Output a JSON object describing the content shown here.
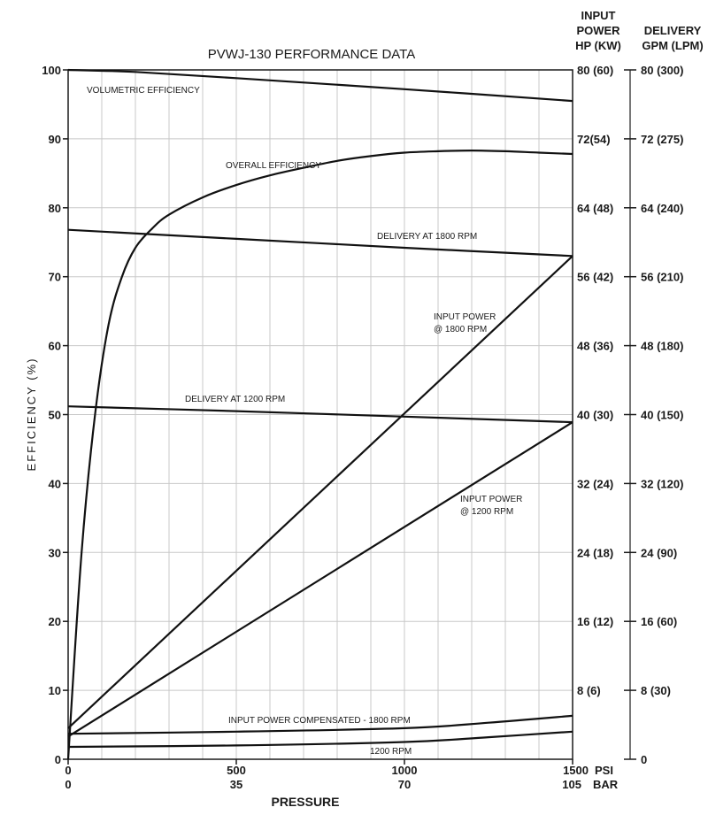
{
  "chart_data": {
    "type": "line",
    "title": "PVWJ-130 PERFORMANCE DATA",
    "xlabel": "PRESSURE",
    "ylabel": "EFFICIENCY (%)",
    "xlim": [
      0,
      1500
    ],
    "ylim": [
      0,
      100
    ],
    "x_unit_psi": "PSI",
    "x_unit_bar": "BAR",
    "x_ticks_psi": [
      "0",
      "500",
      "1000",
      "1500"
    ],
    "x_ticks_bar": [
      "0",
      "35",
      "70",
      "105"
    ],
    "y_ticks": [
      "0",
      "10",
      "20",
      "30",
      "40",
      "50",
      "60",
      "70",
      "80",
      "90",
      "100"
    ],
    "right_axis_1": {
      "title_lines": [
        "INPUT",
        "POWER",
        "HP (KW)"
      ],
      "ticks": [
        "8 (6)",
        "16 (12)",
        "24 (18)",
        "32 (24)",
        "40 (30)",
        "48 (36)",
        "56 (42)",
        "64 (48)",
        "72(54)",
        "80 (60)"
      ]
    },
    "right_axis_2": {
      "title_lines": [
        "DELIVERY",
        "GPM (LPM)"
      ],
      "ticks": [
        "0",
        "8 (30)",
        "16 (60)",
        "24 (90)",
        "32 (120)",
        "40 (150)",
        "48 (180)",
        "56 (210)",
        "64 (240)",
        "72 (275)",
        "80 (300)"
      ]
    },
    "grid": true,
    "series": [
      {
        "name": "VOLUMETRIC EFFICIENCY",
        "points": [
          [
            0,
            100
          ],
          [
            200,
            99.7
          ],
          [
            500,
            98.8
          ],
          [
            1000,
            97.2
          ],
          [
            1500,
            95.5
          ]
        ]
      },
      {
        "name": "OVERALL EFFICIENCY",
        "points": [
          [
            0,
            0
          ],
          [
            40,
            30
          ],
          [
            80,
            50
          ],
          [
            120,
            63
          ],
          [
            160,
            70
          ],
          [
            200,
            74.2
          ],
          [
            250,
            77
          ],
          [
            300,
            79
          ],
          [
            400,
            81.5
          ],
          [
            500,
            83.3
          ],
          [
            600,
            84.7
          ],
          [
            700,
            85.8
          ],
          [
            800,
            86.8
          ],
          [
            900,
            87.5
          ],
          [
            1000,
            88
          ],
          [
            1100,
            88.2
          ],
          [
            1200,
            88.3
          ],
          [
            1300,
            88.2
          ],
          [
            1400,
            88
          ],
          [
            1500,
            87.8
          ]
        ]
      },
      {
        "name": "DELIVERY AT 1800 RPM",
        "points": [
          [
            0,
            76.8
          ],
          [
            500,
            75.5
          ],
          [
            1000,
            74.2
          ],
          [
            1500,
            73.0
          ]
        ]
      },
      {
        "name": "DELIVERY AT 1200 RPM",
        "points": [
          [
            0,
            51.2
          ],
          [
            500,
            50.5
          ],
          [
            1000,
            49.7
          ],
          [
            1500,
            48.9
          ]
        ]
      },
      {
        "name": "INPUT POWER @ 1800 RPM",
        "points": [
          [
            0,
            4.5
          ],
          [
            1500,
            73.0
          ]
        ]
      },
      {
        "name": "INPUT POWER @ 1200 RPM",
        "points": [
          [
            0,
            3.3
          ],
          [
            1500,
            48.9
          ]
        ]
      },
      {
        "name": "INPUT POWER COMPENSATED - 1800 RPM",
        "points": [
          [
            0,
            3.7
          ],
          [
            500,
            4.0
          ],
          [
            1000,
            4.5
          ],
          [
            1250,
            5.3
          ],
          [
            1500,
            6.3
          ]
        ]
      },
      {
        "name": "1200 RPM",
        "points": [
          [
            0,
            1.8
          ],
          [
            500,
            2.0
          ],
          [
            1000,
            2.5
          ],
          [
            1250,
            3.2
          ],
          [
            1500,
            4.0
          ]
        ]
      }
    ]
  }
}
